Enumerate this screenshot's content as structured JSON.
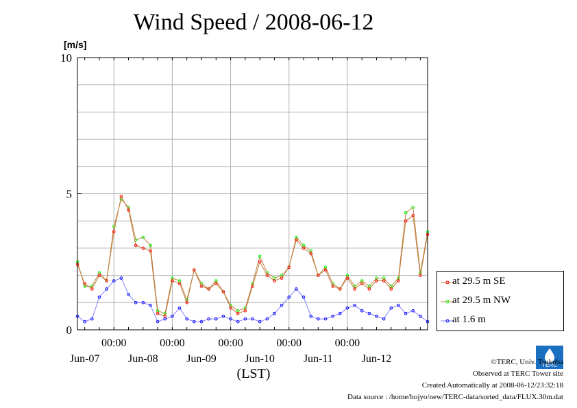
{
  "title": "Wind Speed / 2008-06-12",
  "chart_data": {
    "type": "line",
    "ylabel": "[m/s]",
    "xlabel": "(LST)",
    "ylim": [
      0,
      10
    ],
    "y_ticks": [
      "0",
      "5",
      "10"
    ],
    "xlim": [
      "2008-06-06T09:00",
      "2008-06-12T09:00"
    ],
    "x_major_ticks": [
      "00:00",
      "00:00",
      "00:00",
      "00:00",
      "00:00"
    ],
    "x_day_labels": [
      "Jun-07",
      "Jun-08",
      "Jun-09",
      "Jun-10",
      "Jun-11",
      "Jun-12"
    ],
    "grid": true,
    "legend_position": "right",
    "x": [
      "2008-06-06T09:00",
      "2008-06-06T12:00",
      "2008-06-06T15:00",
      "2008-06-06T18:00",
      "2008-06-06T21:00",
      "2008-06-07T00:00",
      "2008-06-07T03:00",
      "2008-06-07T06:00",
      "2008-06-07T09:00",
      "2008-06-07T12:00",
      "2008-06-07T15:00",
      "2008-06-07T18:00",
      "2008-06-07T21:00",
      "2008-06-08T00:00",
      "2008-06-08T03:00",
      "2008-06-08T06:00",
      "2008-06-08T09:00",
      "2008-06-08T12:00",
      "2008-06-08T15:00",
      "2008-06-08T18:00",
      "2008-06-08T21:00",
      "2008-06-09T00:00",
      "2008-06-09T03:00",
      "2008-06-09T06:00",
      "2008-06-09T09:00",
      "2008-06-09T12:00",
      "2008-06-09T15:00",
      "2008-06-09T18:00",
      "2008-06-09T21:00",
      "2008-06-10T00:00",
      "2008-06-10T03:00",
      "2008-06-10T06:00",
      "2008-06-10T09:00",
      "2008-06-10T12:00",
      "2008-06-10T15:00",
      "2008-06-10T18:00",
      "2008-06-10T21:00",
      "2008-06-11T00:00",
      "2008-06-11T03:00",
      "2008-06-11T06:00",
      "2008-06-11T09:00",
      "2008-06-11T12:00",
      "2008-06-11T15:00",
      "2008-06-11T18:00",
      "2008-06-11T21:00",
      "2008-06-12T00:00",
      "2008-06-12T03:00",
      "2008-06-12T06:00",
      "2008-06-12T09:00"
    ],
    "series": [
      {
        "name": "at 29.5 m SE",
        "color": "#ff0000",
        "values": [
          2.4,
          1.7,
          1.5,
          2.0,
          1.8,
          3.6,
          4.9,
          4.4,
          3.1,
          3.0,
          2.9,
          0.6,
          0.5,
          1.8,
          1.7,
          1.0,
          2.2,
          1.6,
          1.5,
          1.7,
          1.4,
          0.8,
          0.6,
          0.7,
          1.6,
          2.5,
          2.0,
          1.8,
          1.9,
          2.3,
          3.3,
          3.0,
          2.8,
          2.0,
          2.2,
          1.6,
          1.5,
          1.9,
          1.5,
          1.7,
          1.5,
          1.8,
          1.8,
          1.5,
          1.8,
          4.0,
          4.2,
          2.0,
          3.5
        ]
      },
      {
        "name": "at 29.5 m NW",
        "color": "#00ff00",
        "values": [
          2.5,
          1.6,
          1.6,
          2.1,
          1.8,
          3.8,
          4.8,
          4.5,
          3.3,
          3.4,
          3.1,
          0.7,
          0.6,
          1.9,
          1.8,
          1.1,
          2.2,
          1.7,
          1.5,
          1.8,
          1.4,
          0.9,
          0.7,
          0.8,
          1.7,
          2.7,
          2.1,
          1.9,
          2.0,
          2.3,
          3.4,
          3.1,
          2.9,
          2.0,
          2.3,
          1.7,
          1.5,
          2.0,
          1.6,
          1.8,
          1.6,
          1.9,
          1.9,
          1.6,
          1.9,
          4.3,
          4.5,
          2.1,
          3.6
        ]
      },
      {
        "name": "at 1.6 m",
        "color": "#0000ff",
        "values": [
          0.5,
          0.3,
          0.4,
          1.2,
          1.5,
          1.8,
          1.9,
          1.3,
          1.0,
          1.0,
          0.9,
          0.3,
          0.4,
          0.5,
          0.8,
          0.4,
          0.3,
          0.3,
          0.4,
          0.4,
          0.5,
          0.4,
          0.3,
          0.4,
          0.4,
          0.3,
          0.4,
          0.6,
          0.9,
          1.2,
          1.5,
          1.2,
          0.5,
          0.4,
          0.4,
          0.5,
          0.6,
          0.8,
          0.9,
          0.7,
          0.6,
          0.5,
          0.4,
          0.8,
          0.9,
          0.6,
          0.7,
          0.5,
          0.3
        ]
      }
    ]
  },
  "footer": {
    "copyright": "©TERC, Univ. Tsukuba",
    "observed": "Observed at TERC Tower site",
    "created": "Created Automatically at 2008-06-12/23:32:18",
    "source": "Data source : /home/hojyo/new/TERC-data/sorted_data/FLUX.30m.dat"
  },
  "logo_text": "TERC"
}
